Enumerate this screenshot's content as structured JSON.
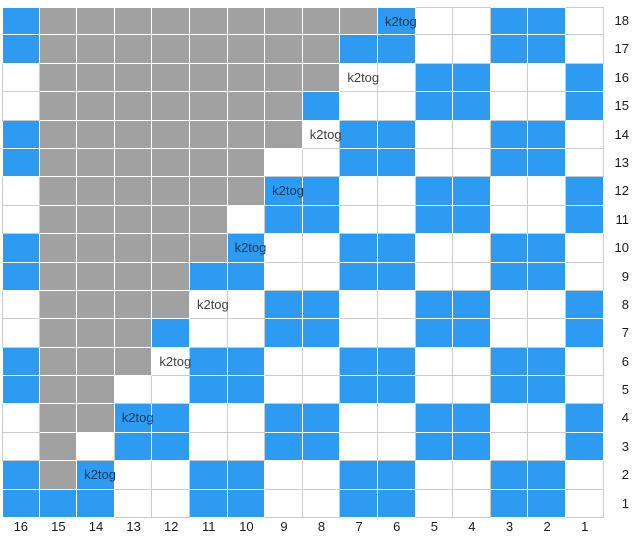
{
  "chart": {
    "k2tog_label": "k2tog",
    "column_labels": [
      "16",
      "15",
      "14",
      "13",
      "12",
      "11",
      "10",
      "9",
      "8",
      "7",
      "6",
      "5",
      "4",
      "3",
      "2",
      "1"
    ],
    "row_labels": [
      "18",
      "17",
      "16",
      "15",
      "14",
      "13",
      "12",
      "11",
      "10",
      "9",
      "8",
      "7",
      "6",
      "5",
      "4",
      "3",
      "2",
      "1"
    ],
    "colors": {
      "blue": "#2D9BF1",
      "gray": "#A1A1A1",
      "white": "#FFFFFF",
      "gridline": "#CBCBCB",
      "label_text": "#1A1A1A",
      "k2tog_on_blue": "#1B3A5C",
      "k2tog_on_white": "#3F3F3F"
    },
    "cell_code_colors": {
      "B": "blue",
      "W": "white",
      "G": "gray"
    },
    "rows": [
      {
        "row": "18",
        "cells": [
          "B",
          "G",
          "G",
          "G",
          "G",
          "G",
          "G",
          "G",
          "G",
          "G",
          "BK",
          "W",
          "W",
          "B",
          "B",
          "W"
        ]
      },
      {
        "row": "17",
        "cells": [
          "B",
          "G",
          "G",
          "G",
          "G",
          "G",
          "G",
          "G",
          "G",
          "B",
          "B",
          "W",
          "W",
          "B",
          "B",
          "W"
        ]
      },
      {
        "row": "16",
        "cells": [
          "W",
          "G",
          "G",
          "G",
          "G",
          "G",
          "G",
          "G",
          "G",
          "WK",
          "W",
          "B",
          "B",
          "W",
          "W",
          "B"
        ]
      },
      {
        "row": "15",
        "cells": [
          "W",
          "G",
          "G",
          "G",
          "G",
          "G",
          "G",
          "G",
          "B",
          "W",
          "W",
          "B",
          "B",
          "W",
          "W",
          "B"
        ]
      },
      {
        "row": "14",
        "cells": [
          "B",
          "G",
          "G",
          "G",
          "G",
          "G",
          "G",
          "G",
          "WK",
          "B",
          "B",
          "W",
          "W",
          "B",
          "B",
          "W"
        ]
      },
      {
        "row": "13",
        "cells": [
          "B",
          "G",
          "G",
          "G",
          "G",
          "G",
          "G",
          "W",
          "W",
          "B",
          "B",
          "W",
          "W",
          "B",
          "B",
          "W"
        ]
      },
      {
        "row": "12",
        "cells": [
          "W",
          "G",
          "G",
          "G",
          "G",
          "G",
          "G",
          "BK",
          "B",
          "W",
          "W",
          "B",
          "B",
          "W",
          "W",
          "B"
        ]
      },
      {
        "row": "11",
        "cells": [
          "W",
          "G",
          "G",
          "G",
          "G",
          "G",
          "W",
          "B",
          "B",
          "W",
          "W",
          "B",
          "B",
          "W",
          "W",
          "B"
        ]
      },
      {
        "row": "10",
        "cells": [
          "B",
          "G",
          "G",
          "G",
          "G",
          "G",
          "BK",
          "W",
          "W",
          "B",
          "B",
          "W",
          "W",
          "B",
          "B",
          "W"
        ]
      },
      {
        "row": "9",
        "cells": [
          "B",
          "G",
          "G",
          "G",
          "G",
          "B",
          "B",
          "W",
          "W",
          "B",
          "B",
          "W",
          "W",
          "B",
          "B",
          "W"
        ]
      },
      {
        "row": "8",
        "cells": [
          "W",
          "G",
          "G",
          "G",
          "G",
          "WK",
          "W",
          "B",
          "B",
          "W",
          "W",
          "B",
          "B",
          "W",
          "W",
          "B"
        ]
      },
      {
        "row": "7",
        "cells": [
          "W",
          "G",
          "G",
          "G",
          "B",
          "W",
          "W",
          "B",
          "B",
          "W",
          "W",
          "B",
          "B",
          "W",
          "W",
          "B"
        ]
      },
      {
        "row": "6",
        "cells": [
          "B",
          "G",
          "G",
          "G",
          "WK",
          "B",
          "B",
          "W",
          "W",
          "B",
          "B",
          "W",
          "W",
          "B",
          "B",
          "W"
        ]
      },
      {
        "row": "5",
        "cells": [
          "B",
          "G",
          "G",
          "W",
          "W",
          "B",
          "B",
          "W",
          "W",
          "B",
          "B",
          "W",
          "W",
          "B",
          "B",
          "W"
        ]
      },
      {
        "row": "4",
        "cells": [
          "W",
          "G",
          "G",
          "BK",
          "B",
          "W",
          "W",
          "B",
          "B",
          "W",
          "W",
          "B",
          "B",
          "W",
          "W",
          "B"
        ]
      },
      {
        "row": "3",
        "cells": [
          "W",
          "G",
          "W",
          "B",
          "B",
          "W",
          "W",
          "B",
          "B",
          "W",
          "W",
          "B",
          "B",
          "W",
          "W",
          "B"
        ]
      },
      {
        "row": "2",
        "cells": [
          "B",
          "G",
          "BK",
          "W",
          "W",
          "B",
          "B",
          "W",
          "W",
          "B",
          "B",
          "W",
          "W",
          "B",
          "B",
          "W"
        ]
      },
      {
        "row": "1",
        "cells": [
          "B",
          "B",
          "B",
          "W",
          "W",
          "B",
          "B",
          "W",
          "W",
          "B",
          "B",
          "W",
          "W",
          "B",
          "B",
          "W"
        ]
      }
    ]
  }
}
